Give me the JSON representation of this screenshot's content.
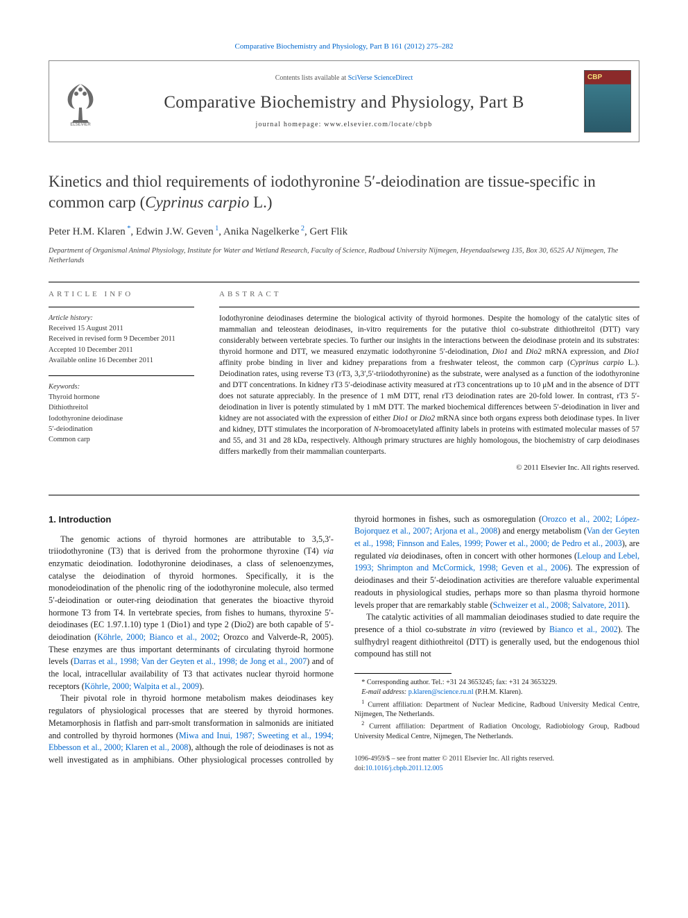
{
  "topLink": {
    "journalText": "Comparative Biochemistry and Physiology, Part B 161 (2012) 275–282",
    "color": "#0066cc"
  },
  "masthead": {
    "contentsPrefix": "Contents lists available at ",
    "contentsLink": "SciVerse ScienceDirect",
    "journalName": "Comparative Biochemistry and Physiology, Part B",
    "homepageLabel": "journal homepage: www.elsevier.com/locate/cbpb",
    "coverBadge": "CBP"
  },
  "title": {
    "main": "Kinetics and thiol requirements of iodothyronine 5′-deiodination are tissue-specific in common carp (",
    "species": "Cyprinus carpio",
    "suffix": " L.)"
  },
  "authors": [
    {
      "name": "Peter H.M. Klaren",
      "marks": " *"
    },
    {
      "name": "Edwin J.W. Geven",
      "marks": " 1"
    },
    {
      "name": "Anika Nagelkerke",
      "marks": " 2"
    },
    {
      "name": "Gert Flik",
      "marks": ""
    }
  ],
  "affiliation": "Department of Organismal Animal Physiology, Institute for Water and Wetland Research, Faculty of Science, Radboud University Nijmegen, Heyendaalseweg 135, Box 30, 6525 AJ Nijmegen, The Netherlands",
  "articleInfo": {
    "label": "ARTICLE INFO",
    "historyLabel": "Article history:",
    "history": [
      "Received 15 August 2011",
      "Received in revised form 9 December 2011",
      "Accepted 10 December 2011",
      "Available online 16 December 2011"
    ],
    "keywordsLabel": "Keywords:",
    "keywords": [
      "Thyroid hormone",
      "Dithiothreitol",
      "Iodothyronine deiodinase",
      "5′-deiodination",
      "Common carp"
    ]
  },
  "abstract": {
    "label": "ABSTRACT",
    "text": "Iodothyronine deiodinases determine the biological activity of thyroid hormones. Despite the homology of the catalytic sites of mammalian and teleostean deiodinases, in-vitro requirements for the putative thiol co-substrate dithiothreitol (DTT) vary considerably between vertebrate species. To further our insights in the interactions between the deiodinase protein and its substrates: thyroid hormone and DTT, we measured enzymatic iodothyronine 5′-deiodination, Dio1 and Dio2 mRNA expression, and Dio1 affinity probe binding in liver and kidney preparations from a freshwater teleost, the common carp (Cyprinus carpio L.). Deiodination rates, using reverse T3 (rT3, 3,3′,5′-triiodothyronine) as the substrate, were analysed as a function of the iodothyronine and DTT concentrations. In kidney rT3 5′-deiodinase activity measured at rT3 concentrations up to 10 μM and in the absence of DTT does not saturate appreciably. In the presence of 1 mM DTT, renal rT3 deiodination rates are 20-fold lower. In contrast, rT3 5′-deiodination in liver is potently stimulated by 1 mM DTT. The marked biochemical differences between 5′-deiodination in liver and kidney are not associated with the expression of either Dio1 or Dio2 mRNA since both organs express both deiodinase types. In liver and kidney, DTT stimulates the incorporation of N-bromoacetylated affinity labels in proteins with estimated molecular masses of 57 and 55, and 31 and 28 kDa, respectively. Although primary structures are highly homologous, the biochemistry of carp deiodinases differs markedly from their mammalian counterparts.",
    "copyright": "© 2011 Elsevier Inc. All rights reserved."
  },
  "body": {
    "heading": "1. Introduction",
    "paragraphs": [
      "The genomic actions of thyroid hormones are attributable to 3,5,3′-triiodothyronine (T3) that is derived from the prohormone thyroxine (T4) via enzymatic deiodination. Iodothyronine deiodinases, a class of selenoenzymes, catalyse the deiodination of thyroid hormones. Specifically, it is the monodeiodination of the phenolic ring of the iodothyronine molecule, also termed 5′-deiodination or outer-ring deiodination that generates the bioactive thyroid hormone T3 from T4. In vertebrate species, from fishes to humans, thyroxine 5′-deiodinases (EC 1.97.1.10) type 1 (Dio1) and type 2 (Dio2) are both capable of 5′-deiodination (Köhrle, 2000; Bianco et al., 2002; Orozco and Valverde-R, 2005). These enzymes are thus important determinants of circulating thyroid hormone levels (Darras et al., 1998; Van der Geyten et al., 1998; de Jong et al., 2007) and of the local, intracellular availability of T3 that activates nuclear thyroid hormone receptors (Köhrle, 2000; Walpita et al., 2009).",
      "Their pivotal role in thyroid hormone metabolism makes deiodinases key regulators of physiological processes that are steered by thyroid hormones. Metamorphosis in flatfish and parr-smolt transformation in salmonids are initiated and controlled by thyroid hormones (Miwa and Inui, 1987; Sweeting et al., 1994; Ebbesson et al., 2000; Klaren et al., 2008), although the role of deiodinases is not as well investigated as in amphibians. Other physiological processes controlled by thyroid hormones in fishes, such as osmoregulation (Orozco et al., 2002; López-Bojorquez et al., 2007; Arjona et al., 2008) and energy metabolism (Van der Geyten et al., 1998; Finnson and Eales, 1999; Power et al., 2000; de Pedro et al., 2003), are regulated via deiodinases, often in concert with other hormones (Leloup and Lebel, 1993; Shrimpton and McCormick, 1998; Geven et al., 2006). The expression of deiodinases and their 5′-deiodination activities are therefore valuable experimental readouts in physiological studies, perhaps more so than plasma thyroid hormone levels proper that are remarkably stable (Schweizer et al., 2008; Salvatore, 2011).",
      "The catalytic activities of all mammalian deiodinases studied to date require the presence of a thiol co-substrate in vitro (reviewed by Bianco et al., 2002). The sulfhydryl reagent dithiothreitol (DTT) is generally used, but the endogenous thiol compound has still not"
    ],
    "linkRanges": [
      "Köhrle, 2000; Bianco et al., 2002; Orozco and Valverde-R, 2005",
      "Darras et al., 1998; Van der Geyten et al., 1998; de Jong et al., 2007",
      "Köhrle, 2000; Walpita et al., 2009",
      "Miwa and Inui, 1987; Sweeting et al., 1994; Ebbesson et al., 2000; Klaren et al., 2008",
      "Orozco et al., 2002; López-Bojorquez et al., 2007; Arjona et al., 2008",
      "Van der Geyten et al., 1998; Finnson and Eales, 1999; Power et al., 2000; de Pedro et al., 2003",
      "Leloup and Lebel, 1993; Shrimpton and McCormick, 1998; Geven et al., 2006",
      "Schweizer et al., 2008; Salvatore, 2011",
      "Bianco et al., 2002"
    ]
  },
  "footnotes": {
    "corresponding": "* Corresponding author. Tel.: +31 24 3653245; fax: +31 24 3653229.",
    "emailLabel": "E-mail address: ",
    "email": "p.klaren@science.ru.nl",
    "emailSuffix": " (P.H.M. Klaren).",
    "notes": [
      {
        "mark": "1",
        "text": "Current affiliation: Department of Nuclear Medicine, Radboud University Medical Centre, Nijmegen, The Netherlands."
      },
      {
        "mark": "2",
        "text": "Current affiliation: Department of Radiation Oncology, Radiobiology Group, Radboud University Medical Centre, Nijmegen, The Netherlands."
      }
    ]
  },
  "bottom": {
    "issn": "1096-4959/$ – see front matter © 2011 Elsevier Inc. All rights reserved.",
    "doiLabel": "doi:",
    "doi": "10.1016/j.cbpb.2011.12.005"
  },
  "colors": {
    "link": "#0066cc",
    "text": "#1a1a1a",
    "muted": "#666666",
    "rule": "#000000",
    "background": "#ffffff"
  },
  "layout": {
    "pageWidthPx": 992,
    "pageHeightPx": 1323,
    "contentPaddingPx": [
      60,
      70,
      40,
      70
    ],
    "columnGapPx": 30,
    "baseFontPt": 12.2,
    "titleFontPt": 23,
    "journalFontPt": 25,
    "abstractFontPt": 11.3,
    "infoFontPt": 10.5
  }
}
